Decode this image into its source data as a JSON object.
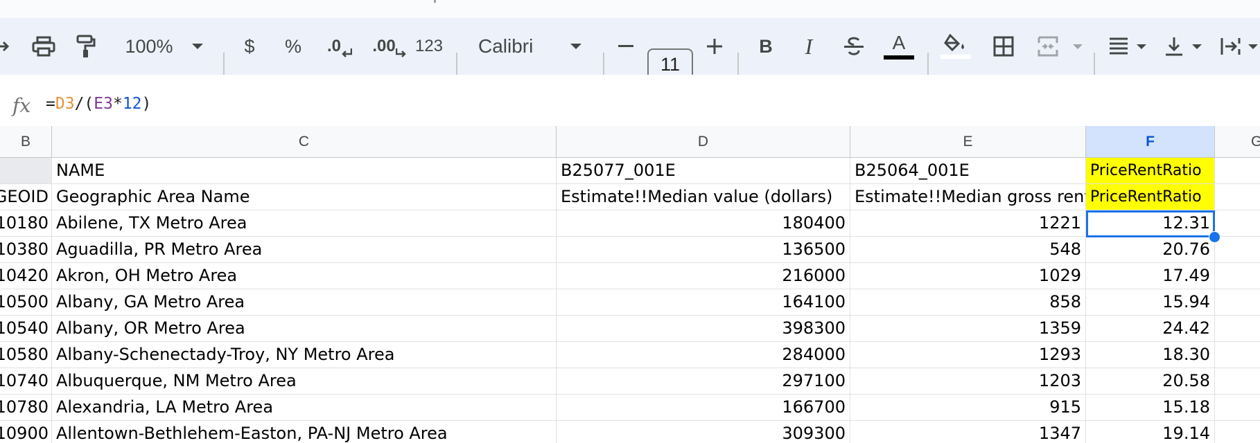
{
  "toolbar": {
    "zoom": "100%",
    "currency": "$",
    "percent": "%",
    "decrease_decimal": ".0",
    "increase_decimal": ".00",
    "number_format": "123",
    "font": "Calibri",
    "font_size": "11",
    "minus": "–",
    "plus": "+",
    "bold": "B",
    "italic": "I",
    "text_color_letter": "A"
  },
  "formula": {
    "fx": "fx",
    "eq": "=",
    "ref1": "D3",
    "op1": "/(",
    "ref2": "E3",
    "op2": "*",
    "num": "12",
    "close": ")",
    "colors": {
      "ref1": "#e69138",
      "ref2": "#7e3794",
      "num": "#1155cc"
    }
  },
  "columns": [
    "B",
    "C",
    "D",
    "E",
    "F",
    "G"
  ],
  "selected_column": "F",
  "header_rows": [
    {
      "b": "",
      "c": "NAME",
      "d": "B25077_001E",
      "e": "B25064_001E",
      "f": "PriceRentRatio"
    },
    {
      "b": "GEOID",
      "c": "Geographic Area Name",
      "d": "Estimate!!Median value (dollars)",
      "e": "Estimate!!Median gross rent",
      "f": "PriceRentRatio"
    }
  ],
  "rows": [
    {
      "b": "10180",
      "c": "Abilene, TX Metro Area",
      "d": "180400",
      "e": "1221",
      "f": "12.31"
    },
    {
      "b": "10380",
      "c": "Aguadilla, PR Metro Area",
      "d": "136500",
      "e": "548",
      "f": "20.76"
    },
    {
      "b": "10420",
      "c": "Akron, OH Metro Area",
      "d": "216000",
      "e": "1029",
      "f": "17.49"
    },
    {
      "b": "10500",
      "c": "Albany, GA Metro Area",
      "d": "164100",
      "e": "858",
      "f": "15.94"
    },
    {
      "b": "10540",
      "c": "Albany, OR Metro Area",
      "d": "398300",
      "e": "1359",
      "f": "24.42"
    },
    {
      "b": "10580",
      "c": "Albany-Schenectady-Troy, NY Metro Area",
      "d": "284000",
      "e": "1293",
      "f": "18.30"
    },
    {
      "b": "10740",
      "c": "Albuquerque, NM Metro Area",
      "d": "297100",
      "e": "1203",
      "f": "20.58"
    },
    {
      "b": "10780",
      "c": "Alexandria, LA Metro Area",
      "d": "166700",
      "e": "915",
      "f": "15.18"
    },
    {
      "b": "10900",
      "c": "Allentown-Bethlehem-Easton, PA-NJ Metro Area",
      "d": "309300",
      "e": "1347",
      "f": "19.14"
    }
  ],
  "colors": {
    "highlight": "#ffff00",
    "selection": "#1a73e8",
    "toolbar_bg": "#edf2fa"
  }
}
